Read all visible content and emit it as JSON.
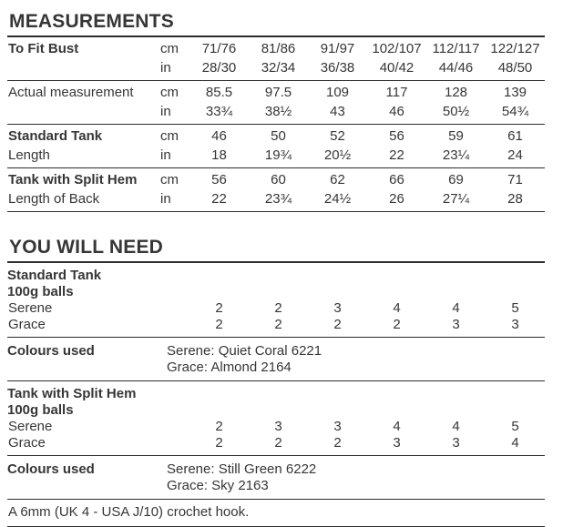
{
  "measurements": {
    "heading": "MEASUREMENTS",
    "rows": [
      {
        "label1": "To Fit Bust",
        "label2": "",
        "unit1": "cm",
        "unit2": "in",
        "line1": [
          "71/76",
          "81/86",
          "91/97",
          "102/107",
          "112/117",
          "122/127"
        ],
        "line2": [
          "28/30",
          "32/34",
          "36/38",
          "40/42",
          "44/46",
          "48/50"
        ]
      },
      {
        "label1": "Actual measurement",
        "label2": "",
        "unit1": "cm",
        "unit2": "in",
        "line1": [
          "85.5",
          "97.5",
          "109",
          "117",
          "128",
          "139"
        ],
        "line2": [
          "33¾",
          "38½",
          "43",
          "46",
          "50½",
          "54¾"
        ]
      },
      {
        "label1": "Standard Tank",
        "label2": "Length",
        "unit1": "cm",
        "unit2": "in",
        "line1": [
          "46",
          "50",
          "52",
          "56",
          "59",
          "61"
        ],
        "line2": [
          "18",
          "19¾",
          "20½",
          "22",
          "23¼",
          "24"
        ]
      },
      {
        "label1": "Tank with Split Hem",
        "label2": "Length of Back",
        "unit1": "cm",
        "unit2": "in",
        "line1": [
          "56",
          "60",
          "62",
          "66",
          "69",
          "71"
        ],
        "line2": [
          "22",
          "23¾",
          "24½",
          "26",
          "27¼",
          "28"
        ]
      }
    ]
  },
  "you_will_need": {
    "heading": "YOU WILL NEED",
    "blocks": [
      {
        "title": "Standard Tank",
        "subtitle": "100g balls",
        "yarn_rows": [
          {
            "name": "Serene",
            "values": [
              "2",
              "2",
              "3",
              "4",
              "4",
              "5"
            ]
          },
          {
            "name": "Grace",
            "values": [
              "2",
              "2",
              "2",
              "2",
              "3",
              "3"
            ]
          }
        ],
        "colours_label": "Colours used",
        "colours": [
          "Serene: Quiet Coral 6221",
          "Grace: Almond 2164"
        ]
      },
      {
        "title": "Tank with Split Hem",
        "subtitle": "100g balls",
        "yarn_rows": [
          {
            "name": "Serene",
            "values": [
              "2",
              "3",
              "3",
              "4",
              "4",
              "5"
            ]
          },
          {
            "name": "Grace",
            "values": [
              "2",
              "2",
              "2",
              "3",
              "3",
              "4"
            ]
          }
        ],
        "colours_label": "Colours used",
        "colours": [
          "Serene: Still Green 6222",
          "Grace: Sky 2163"
        ]
      }
    ],
    "footer": "A 6mm (UK 4 - USA J/10) crochet hook."
  }
}
